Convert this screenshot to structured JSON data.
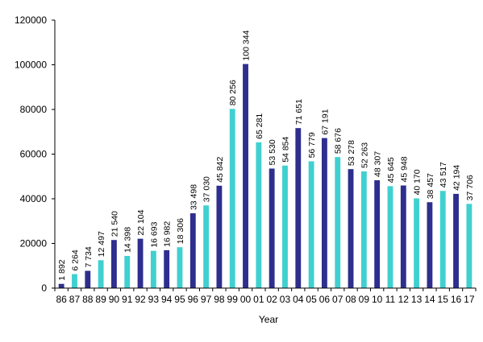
{
  "chart_data": {
    "type": "bar",
    "title": "",
    "xlabel": "Year",
    "ylabel": "",
    "ylim": [
      0,
      120000
    ],
    "yticks": [
      0,
      20000,
      40000,
      60000,
      80000,
      100000,
      120000
    ],
    "grid": false,
    "legend": "none",
    "categories": [
      "86",
      "87",
      "88",
      "89",
      "90",
      "91",
      "92",
      "93",
      "94",
      "95",
      "96",
      "97",
      "98",
      "99",
      "00",
      "01",
      "02",
      "03",
      "04",
      "05",
      "06",
      "07",
      "08",
      "09",
      "10",
      "11",
      "12",
      "13",
      "14",
      "15",
      "16",
      "17"
    ],
    "values": [
      1892,
      6264,
      7734,
      12497,
      21540,
      14398,
      22104,
      16693,
      16982,
      18306,
      33498,
      37030,
      45842,
      80256,
      100344,
      65281,
      53530,
      54854,
      71651,
      56779,
      67191,
      58676,
      53278,
      52263,
      48307,
      45645,
      45948,
      40170,
      38457,
      43517,
      42194,
      37706
    ],
    "value_labels": [
      "1 892",
      "6 264",
      "7 734",
      "12 497",
      "21 540",
      "14 398",
      "22 104",
      "16 693",
      "16 982",
      "18 306",
      "33 498",
      "37 030",
      "45 842",
      "80 256",
      "100 344",
      "65 281",
      "53 530",
      "54 854",
      "71 651",
      "56 779",
      "67 191",
      "58 676",
      "53 278",
      "52 263",
      "48 307",
      "45 645",
      "45 948",
      "40 170",
      "38 457",
      "43 517",
      "42 194",
      "37 706"
    ],
    "colors": {
      "dark": "#2e2e8f",
      "light": "#40d0d0",
      "bar_color_sequence": [
        "dark",
        "light",
        "dark",
        "light",
        "dark",
        "light",
        "dark",
        "light",
        "dark",
        "light",
        "dark",
        "light",
        "dark",
        "light",
        "dark",
        "light",
        "dark",
        "light",
        "dark",
        "light",
        "dark",
        "light",
        "dark",
        "light",
        "dark",
        "light",
        "dark",
        "light",
        "dark",
        "light",
        "dark",
        "light"
      ]
    }
  }
}
